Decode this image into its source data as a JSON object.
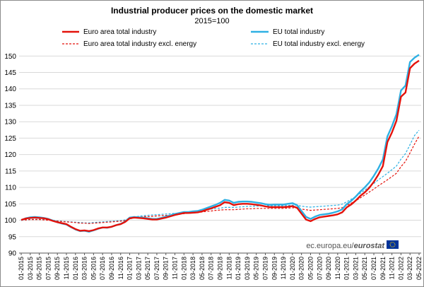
{
  "chart_data": {
    "type": "line",
    "title": "Industrial producer prices on the domestic market",
    "subtitle": "2015=100",
    "ylim": [
      90,
      152
    ],
    "yticks": [
      90,
      95,
      100,
      105,
      110,
      115,
      120,
      125,
      130,
      135,
      140,
      145,
      150
    ],
    "xlabel": "",
    "ylabel": "",
    "grid": "horizontal",
    "legend_position": "top",
    "x": [
      "01-2015",
      "02-2015",
      "03-2015",
      "04-2015",
      "05-2015",
      "06-2015",
      "07-2015",
      "08-2015",
      "09-2015",
      "10-2015",
      "11-2015",
      "12-2015",
      "01-2016",
      "02-2016",
      "03-2016",
      "04-2016",
      "05-2016",
      "06-2016",
      "07-2016",
      "08-2016",
      "09-2016",
      "10-2016",
      "11-2016",
      "12-2016",
      "01-2017",
      "02-2017",
      "03-2017",
      "04-2017",
      "05-2017",
      "06-2017",
      "07-2017",
      "08-2017",
      "09-2017",
      "10-2017",
      "11-2017",
      "12-2017",
      "01-2018",
      "02-2018",
      "03-2018",
      "04-2018",
      "05-2018",
      "06-2018",
      "07-2018",
      "08-2018",
      "09-2018",
      "10-2018",
      "11-2018",
      "12-2018",
      "01-2019",
      "02-2019",
      "03-2019",
      "04-2019",
      "05-2019",
      "06-2019",
      "07-2019",
      "08-2019",
      "09-2019",
      "10-2019",
      "11-2019",
      "12-2019",
      "01-2020",
      "02-2020",
      "03-2020",
      "04-2020",
      "05-2020",
      "06-2020",
      "07-2020",
      "08-2020",
      "09-2020",
      "10-2020",
      "11-2020",
      "12-2020",
      "01-2021",
      "02-2021",
      "03-2021",
      "04-2021",
      "05-2021",
      "06-2021",
      "07-2021",
      "08-2021",
      "09-2021",
      "10-2021",
      "11-2021",
      "12-2021",
      "01-2022",
      "02-2022",
      "03-2022",
      "04-2022",
      "05-2022"
    ],
    "xtick_labels": [
      "01-2015",
      "03-2015",
      "05-2015",
      "07-2015",
      "09-2015",
      "11-2015",
      "01-2016",
      "03-2016",
      "05-2016",
      "07-2016",
      "09-2016",
      "11-2016",
      "01-2017",
      "03-2017",
      "05-2017",
      "07-2017",
      "09-2017",
      "11-2017",
      "01-2018",
      "03-2018",
      "05-2018",
      "07-2018",
      "09-2018",
      "11-2018",
      "01-2019",
      "03-2019",
      "05-2019",
      "07-2019",
      "09-2019",
      "11-2019",
      "01-2020",
      "03-2020",
      "05-2020",
      "07-2020",
      "09-2020",
      "11-2020",
      "01-2021",
      "03-2021",
      "05-2021",
      "07-2021",
      "09-2021",
      "11-2021",
      "01-2022",
      "03-2022",
      "05-2022"
    ],
    "series": [
      {
        "name": "Euro area total industry",
        "color": "#e3120b",
        "dash": "solid",
        "values": [
          100.1,
          100.5,
          100.7,
          100.8,
          100.7,
          100.6,
          100.3,
          99.8,
          99.4,
          99.1,
          98.8,
          98.0,
          97.3,
          96.8,
          96.9,
          96.7,
          97.0,
          97.5,
          97.8,
          97.8,
          98.0,
          98.5,
          98.8,
          99.5,
          100.6,
          100.8,
          100.7,
          100.6,
          100.4,
          100.2,
          100.2,
          100.5,
          100.8,
          101.2,
          101.6,
          101.9,
          102.2,
          102.2,
          102.3,
          102.4,
          102.7,
          103.2,
          103.6,
          104.1,
          104.6,
          105.5,
          105.3,
          104.6,
          104.9,
          105.0,
          105.0,
          104.9,
          104.7,
          104.5,
          104.2,
          104.0,
          104.0,
          104.0,
          104.0,
          104.1,
          104.3,
          103.8,
          102.0,
          100.2,
          99.7,
          100.4,
          100.9,
          101.1,
          101.3,
          101.5,
          101.8,
          102.4,
          103.9,
          104.8,
          106.0,
          107.4,
          108.5,
          109.9,
          111.7,
          113.9,
          116.5,
          123.8,
          126.7,
          130.3,
          137.6,
          138.9,
          146.3,
          147.7,
          148.6
        ]
      },
      {
        "name": "EU total industry",
        "color": "#2eb0e3",
        "dash": "solid",
        "values": [
          100.0,
          100.6,
          100.9,
          101.0,
          100.9,
          100.7,
          100.4,
          99.9,
          99.4,
          99.0,
          98.7,
          97.9,
          97.2,
          96.7,
          96.8,
          96.5,
          96.9,
          97.4,
          97.8,
          97.7,
          98.0,
          98.5,
          98.9,
          99.6,
          100.8,
          101.0,
          100.9,
          100.8,
          100.6,
          100.4,
          100.4,
          100.7,
          101.1,
          101.5,
          101.9,
          102.2,
          102.5,
          102.5,
          102.7,
          102.8,
          103.2,
          103.7,
          104.2,
          104.7,
          105.3,
          106.2,
          106.0,
          105.3,
          105.6,
          105.7,
          105.7,
          105.6,
          105.4,
          105.2,
          104.9,
          104.7,
          104.8,
          104.8,
          104.8,
          105.0,
          105.2,
          104.6,
          102.8,
          101.0,
          100.4,
          101.1,
          101.6,
          101.8,
          102.0,
          102.3,
          102.7,
          103.3,
          104.9,
          105.9,
          107.2,
          108.7,
          110.0,
          111.5,
          113.5,
          115.8,
          118.5,
          125.5,
          128.6,
          132.3,
          139.5,
          141.0,
          148.2,
          149.5,
          150.4
        ]
      },
      {
        "name": "Euro area total industry excl. energy",
        "color": "#e3120b",
        "dash": "dashed",
        "values": [
          100.0,
          100.1,
          100.2,
          100.2,
          100.2,
          100.1,
          100.0,
          99.9,
          99.7,
          99.6,
          99.5,
          99.4,
          99.3,
          99.1,
          99.1,
          99.0,
          99.1,
          99.2,
          99.3,
          99.4,
          99.5,
          99.6,
          99.7,
          99.9,
          100.4,
          100.7,
          100.9,
          101.1,
          101.1,
          101.2,
          101.3,
          101.4,
          101.5,
          101.6,
          101.7,
          101.8,
          102.0,
          102.1,
          102.2,
          102.3,
          102.5,
          102.7,
          102.8,
          103.0,
          103.1,
          103.2,
          103.2,
          103.2,
          103.3,
          103.4,
          103.5,
          103.5,
          103.6,
          103.6,
          103.6,
          103.6,
          103.6,
          103.6,
          103.6,
          103.7,
          103.8,
          103.7,
          103.4,
          103.2,
          103.0,
          103.1,
          103.2,
          103.3,
          103.4,
          103.5,
          103.6,
          103.8,
          104.5,
          105.2,
          105.9,
          106.8,
          107.7,
          108.6,
          109.5,
          110.5,
          111.4,
          112.3,
          113.3,
          114.3,
          116.3,
          117.9,
          120.5,
          123.2,
          125.6
        ]
      },
      {
        "name": "EU total industry excl. energy",
        "color": "#2eb0e3",
        "dash": "dashed",
        "values": [
          100.0,
          100.1,
          100.3,
          100.3,
          100.3,
          100.2,
          100.1,
          100.0,
          99.8,
          99.7,
          99.6,
          99.5,
          99.4,
          99.3,
          99.2,
          99.2,
          99.3,
          99.4,
          99.5,
          99.6,
          99.7,
          99.8,
          99.9,
          100.1,
          100.7,
          101.0,
          101.2,
          101.4,
          101.5,
          101.6,
          101.7,
          101.8,
          101.9,
          102.0,
          102.1,
          102.2,
          102.4,
          102.5,
          102.7,
          102.8,
          103.0,
          103.2,
          103.4,
          103.6,
          103.7,
          103.9,
          103.9,
          103.9,
          104.0,
          104.1,
          104.2,
          104.3,
          104.3,
          104.4,
          104.4,
          104.4,
          104.4,
          104.4,
          104.4,
          104.5,
          104.6,
          104.5,
          104.3,
          104.1,
          104.0,
          104.1,
          104.2,
          104.3,
          104.4,
          104.5,
          104.6,
          104.9,
          105.6,
          106.4,
          107.2,
          108.2,
          109.2,
          110.2,
          111.2,
          112.3,
          113.3,
          114.3,
          115.4,
          116.5,
          118.6,
          120.3,
          123.0,
          125.8,
          127.4
        ]
      }
    ]
  },
  "source": {
    "text": "ec.europa.eu/",
    "brand": "eurostat",
    "flag_color": "#003399",
    "star_color": "#ffcc00"
  }
}
